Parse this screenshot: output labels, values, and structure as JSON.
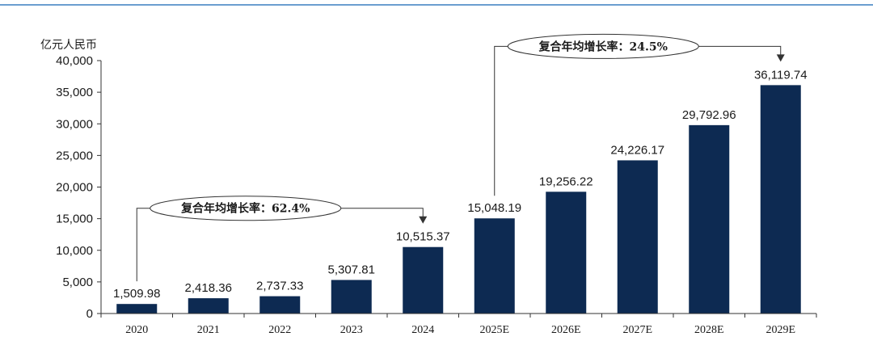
{
  "chart_data": {
    "type": "bar",
    "ylabel": "亿元人民币",
    "ylim": [
      0,
      40000
    ],
    "yticks": [
      "0",
      "5,000",
      "10,000",
      "15,000",
      "20,000",
      "25,000",
      "30,000",
      "35,000",
      "40,000"
    ],
    "categories": [
      "2020",
      "2021",
      "2022",
      "2023",
      "2024",
      "2025E",
      "2026E",
      "2027E",
      "2028E",
      "2029E"
    ],
    "values": [
      1509.98,
      2418.36,
      2737.33,
      5307.81,
      10515.37,
      15048.19,
      19256.22,
      24226.17,
      29792.96,
      36119.74
    ],
    "value_labels": [
      "1,509.98",
      "2,418.36",
      "2,737.33",
      "5,307.81",
      "10,515.37",
      "15,048.19",
      "19,256.22",
      "24,226.17",
      "29,792.96",
      "36,119.74"
    ],
    "grid": false,
    "annotations": [
      {
        "text": "复合年均增长率：62.4%",
        "from": "2020",
        "to": "2024"
      },
      {
        "text": "复合年均增长率：24.5%",
        "from": "2025E",
        "to": "2029E"
      }
    ]
  },
  "colors": {
    "bar": "#0d2a52",
    "top_rule": "#3a7fc1",
    "axis": "#333333"
  }
}
